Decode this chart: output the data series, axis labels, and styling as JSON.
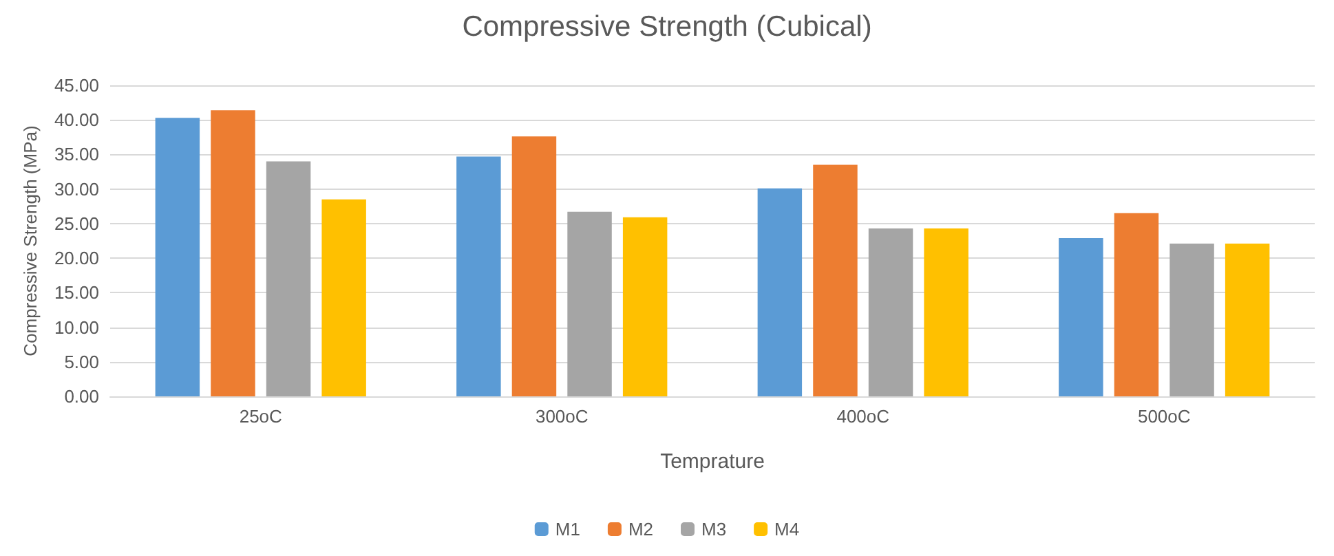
{
  "chart_data": {
    "type": "bar",
    "title": "Compressive Strength (Cubical)",
    "xlabel": "Temprature",
    "ylabel": "Compressive Strength (MPa)",
    "categories": [
      "25oC",
      "300oC",
      "400oC",
      "500oC"
    ],
    "series": [
      {
        "name": "M1",
        "color": "#5b9bd5",
        "values": [
          40.3,
          34.7,
          30.1,
          22.9
        ]
      },
      {
        "name": "M2",
        "color": "#ed7d31",
        "values": [
          41.4,
          37.6,
          33.5,
          26.5
        ]
      },
      {
        "name": "M3",
        "color": "#a5a5a5",
        "values": [
          34.0,
          26.7,
          24.3,
          22.1
        ]
      },
      {
        "name": "M4",
        "color": "#ffc000",
        "values": [
          28.5,
          25.9,
          24.3,
          22.1
        ]
      }
    ],
    "ylim": [
      0,
      45
    ],
    "yticks": [
      {
        "value": 0,
        "label": "0.00"
      },
      {
        "value": 5,
        "label": "5.00"
      },
      {
        "value": 10,
        "label": "10.00"
      },
      {
        "value": 15,
        "label": "15.00"
      },
      {
        "value": 20,
        "label": "20.00"
      },
      {
        "value": 25,
        "label": "25.00"
      },
      {
        "value": 30,
        "label": "30.00"
      },
      {
        "value": 35,
        "label": "35.00"
      },
      {
        "value": 40,
        "label": "40.00"
      },
      {
        "value": 45,
        "label": "45.00"
      }
    ],
    "grid": "y",
    "legend": "bottom"
  }
}
